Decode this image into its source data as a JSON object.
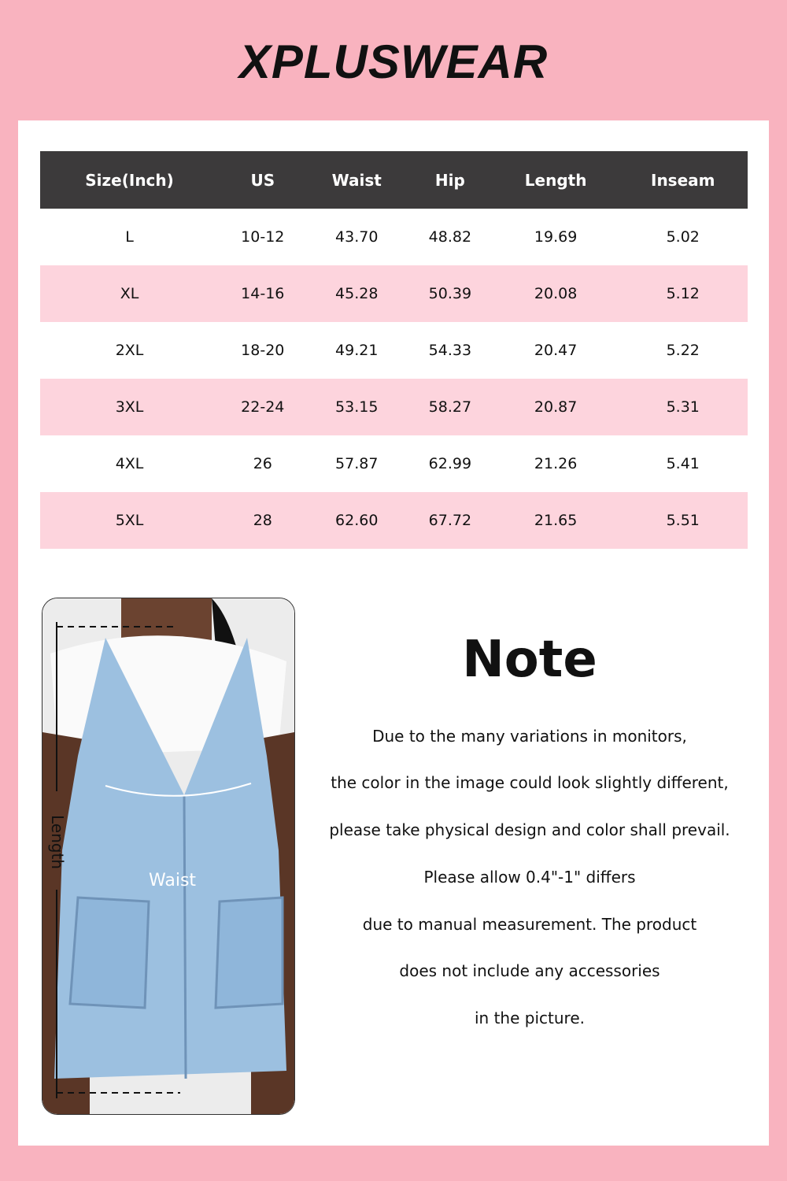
{
  "brand": {
    "logo_text": "XPLUSWEAR"
  },
  "colors": {
    "background": "#f9b3bf",
    "header": "#3c3a3b",
    "alt_row": "#fdd4dd"
  },
  "table": {
    "headers": [
      "Size(Inch)",
      "US",
      "Waist",
      "Hip",
      "Length",
      "Inseam"
    ],
    "rows": [
      [
        "L",
        "10-12",
        "43.70",
        "48.82",
        "19.69",
        "5.02"
      ],
      [
        "XL",
        "14-16",
        "45.28",
        "50.39",
        "20.08",
        "5.12"
      ],
      [
        "2XL",
        "18-20",
        "49.21",
        "54.33",
        "20.47",
        "5.22"
      ],
      [
        "3XL",
        "22-24",
        "53.15",
        "58.27",
        "20.87",
        "5.31"
      ],
      [
        "4XL",
        "26",
        "57.87",
        "62.99",
        "21.26",
        "5.41"
      ],
      [
        "5XL",
        "28",
        "62.60",
        "67.72",
        "21.65",
        "5.51"
      ]
    ]
  },
  "photo": {
    "length_label": "Length",
    "waist_label": "Waist"
  },
  "note": {
    "title": "Note",
    "lines": [
      "Due to the many variations in monitors,",
      "the color in the image could look slightly different,",
      "please take physical design and color shall prevail.",
      "Please allow 0.4\"-1\" differs",
      "due to manual measurement. The product",
      "does not include any accessories",
      "in the picture."
    ]
  }
}
